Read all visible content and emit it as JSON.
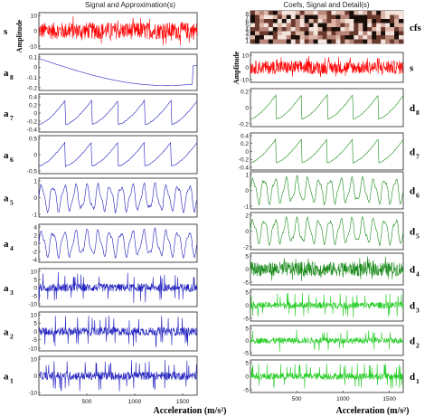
{
  "chart_data": [
    {
      "type": "line",
      "title": "Signal and Approximation(s)",
      "xlabel": "Acceleration (m/s²)",
      "ylabel": "Amplitude",
      "xlim": [
        1,
        1650
      ],
      "x_ticks": [
        "500",
        "1000",
        "1500"
      ],
      "series": [
        {
          "name": "s",
          "sub": "",
          "color": "#ff0000",
          "ylim": [
            -10,
            10
          ],
          "y_ticks": [
            "10",
            "0",
            "-10"
          ],
          "amplitude": 8
        },
        {
          "name": "a",
          "sub": "8",
          "color": "#1f1fbf",
          "ylim": [
            -0.2,
            0.1
          ],
          "y_ticks": [
            "0.1",
            "0",
            "-0.1",
            "-0.2"
          ]
        },
        {
          "name": "a",
          "sub": "7",
          "color": "#1f1fbf",
          "ylim": [
            -0.4,
            0.4
          ],
          "y_ticks": [
            "0.4",
            "0.2",
            "0",
            "-0.2",
            "-0.4"
          ]
        },
        {
          "name": "a",
          "sub": "6",
          "color": "#1f1fbf",
          "ylim": [
            -0.5,
            0.5
          ],
          "y_ticks": [
            "0.5",
            "0",
            "-0.5"
          ]
        },
        {
          "name": "a",
          "sub": "5",
          "color": "#1f1fbf",
          "ylim": [
            -1,
            1
          ],
          "y_ticks": [
            "1",
            "0",
            "-1"
          ]
        },
        {
          "name": "a",
          "sub": "4",
          "color": "#1f1fbf",
          "ylim": [
            -4,
            4
          ],
          "y_ticks": [
            "4",
            "2",
            "0",
            "-2",
            "-4"
          ]
        },
        {
          "name": "a",
          "sub": "3",
          "color": "#1f1fbf",
          "ylim": [
            -10,
            10
          ],
          "y_ticks": [
            "10",
            "5",
            "0",
            "-5",
            "-10"
          ]
        },
        {
          "name": "a",
          "sub": "2",
          "color": "#1f1fbf",
          "ylim": [
            -10,
            10
          ],
          "y_ticks": [
            "10",
            "5",
            "0",
            "-5",
            "-10"
          ]
        },
        {
          "name": "a",
          "sub": "1",
          "color": "#1f1fbf",
          "ylim": [
            -10,
            10
          ],
          "y_ticks": [
            "10",
            "0",
            "-10"
          ]
        }
      ]
    },
    {
      "type": "line",
      "title": "Coefs, Signal and Detail(s)",
      "xlabel": "Acceleration (m/s²)",
      "ylabel": "Amplitude",
      "xlim": [
        1,
        1650
      ],
      "x_ticks": [
        "500",
        "1000",
        "1500"
      ],
      "series": [
        {
          "name": "cfs",
          "sub": "",
          "type": "heatmap",
          "y_ticks": [
            "8",
            "7",
            "6",
            "5",
            "4",
            "3",
            "2",
            "1"
          ]
        },
        {
          "name": "s",
          "sub": "",
          "color": "#ff0000",
          "ylim": [
            -10,
            10
          ],
          "y_ticks": [
            "10",
            "0",
            "-10"
          ]
        },
        {
          "name": "d",
          "sub": "8",
          "color": "#1a8a1a",
          "ylim": [
            -0.2,
            0.2
          ],
          "y_ticks": [
            "0.2",
            "0",
            "-0.2"
          ]
        },
        {
          "name": "d",
          "sub": "7",
          "color": "#1a8a1a",
          "ylim": [
            -0.4,
            0.4
          ],
          "y_ticks": [
            "0.4",
            "0.2",
            "0",
            "-0.2",
            "-0.4"
          ]
        },
        {
          "name": "d",
          "sub": "6",
          "color": "#1a8a1a",
          "ylim": [
            -1,
            1
          ],
          "y_ticks": [
            "1",
            "0",
            "-1"
          ]
        },
        {
          "name": "d",
          "sub": "5",
          "color": "#1a8a1a",
          "ylim": [
            -2,
            2
          ],
          "y_ticks": [
            "2",
            "0",
            "-2"
          ]
        },
        {
          "name": "d",
          "sub": "4",
          "color": "#1a8a1a",
          "ylim": [
            -5,
            5
          ],
          "y_ticks": [
            "5",
            "0",
            "-5"
          ]
        },
        {
          "name": "d",
          "sub": "3",
          "color": "#22cc22",
          "ylim": [
            -5,
            5
          ],
          "y_ticks": [
            "5",
            "0",
            "-5"
          ]
        },
        {
          "name": "d",
          "sub": "2",
          "color": "#22cc22",
          "ylim": [
            -5,
            5
          ],
          "y_ticks": [
            "5",
            "0",
            "-5"
          ]
        },
        {
          "name": "d",
          "sub": "1",
          "color": "#22cc22",
          "ylim": [
            -5,
            5
          ],
          "y_ticks": [
            "5",
            "0",
            "-5"
          ]
        }
      ]
    }
  ]
}
